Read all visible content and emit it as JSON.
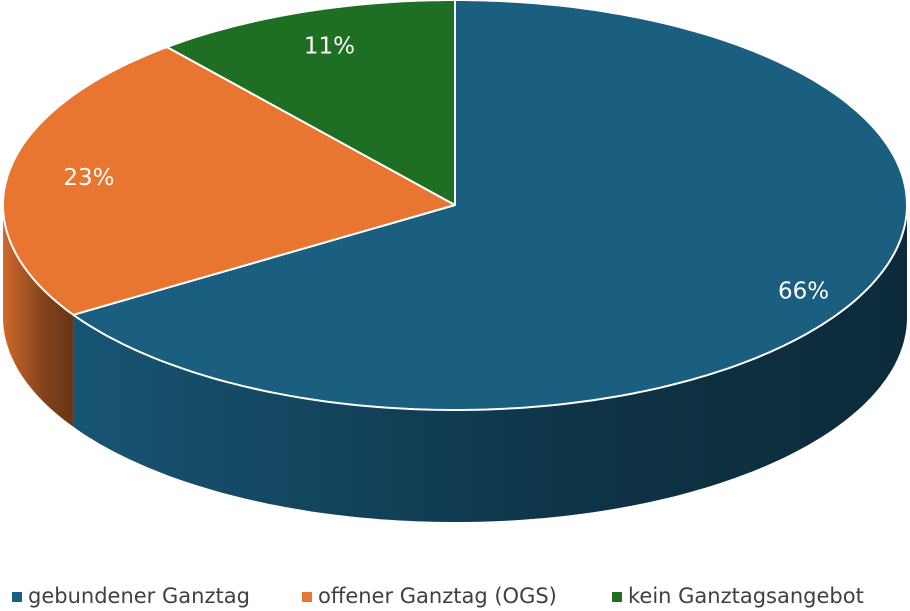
{
  "chart_data": {
    "type": "pie",
    "categories": [
      "gebundener Ganztag",
      "offener Ganztag (OGS)",
      "kein Ganztagsangebot"
    ],
    "values": [
      66,
      23,
      11
    ],
    "value_labels": [
      "66%",
      "23%",
      "11%"
    ],
    "colors": [
      "#1a5e80",
      "#e87530",
      "#1e6e23"
    ],
    "legend": "bottom"
  }
}
